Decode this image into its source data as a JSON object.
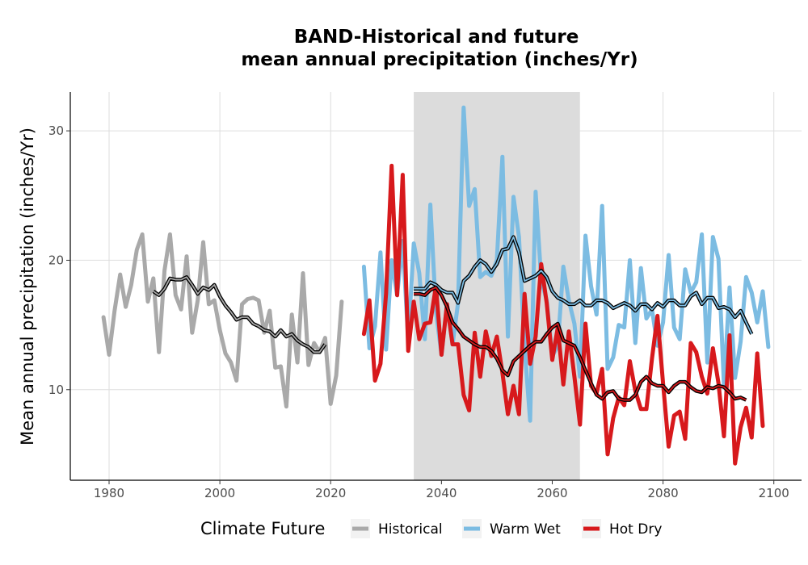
{
  "chart_data": {
    "type": "line",
    "title_lines": [
      "BAND-Historical and future",
      "mean annual precipitation (inches/Yr)"
    ],
    "xlabel": "",
    "ylabel": "Mean annual precipitation (inches/Yr)",
    "xlim": [
      1973,
      2105
    ],
    "ylim": [
      3,
      33
    ],
    "x_ticks": [
      1980,
      2000,
      2020,
      2040,
      2060,
      2080,
      2100
    ],
    "y_ticks": [
      10,
      20,
      30
    ],
    "grid": true,
    "shaded_period": [
      2035,
      2065
    ],
    "legend": {
      "title": "Climate Future",
      "position": "bottom"
    },
    "series": [
      {
        "name": "Historical",
        "color": "#a9a9a9",
        "x_start": 1979,
        "values": [
          15.6,
          12.7,
          16.1,
          18.9,
          16.4,
          18.1,
          20.8,
          22.0,
          16.8,
          18.6,
          12.9,
          19.2,
          22.0,
          17.3,
          16.2,
          20.3,
          14.4,
          16.9,
          21.4,
          16.6,
          16.9,
          14.6,
          12.8,
          12.1,
          10.7,
          16.6,
          17.0,
          17.1,
          16.9,
          14.4,
          16.1,
          11.7,
          11.8,
          8.7,
          15.8,
          12.1,
          19.0,
          11.9,
          13.6,
          12.9,
          14.0,
          8.9,
          11.1,
          16.8
        ]
      },
      {
        "name": "Historical rolling mean",
        "color": "#000000",
        "x_start": 1988,
        "values": [
          17.6,
          17.3,
          17.8,
          18.6,
          18.5,
          18.5,
          18.7,
          18.1,
          17.4,
          17.9,
          17.7,
          18.1,
          17.2,
          16.5,
          16.0,
          15.4,
          15.6,
          15.6,
          15.1,
          14.9,
          14.6,
          14.5,
          14.1,
          14.6,
          14.1,
          14.3,
          13.8,
          13.5,
          13.3,
          12.9,
          12.9,
          13.5
        ]
      },
      {
        "name": "Warm Wet",
        "color": "#7cbce2",
        "x_start": 2026,
        "values": [
          19.5,
          13.2,
          14.9,
          20.6,
          13.1,
          20.0,
          17.3,
          21.5,
          13.8,
          21.3,
          19.0,
          13.9,
          24.3,
          16.1,
          12.7,
          16.6,
          13.5,
          16.7,
          31.8,
          24.2,
          25.5,
          18.7,
          19.1,
          18.8,
          20.0,
          28.0,
          14.1,
          24.9,
          21.8,
          13.3,
          7.6,
          25.3,
          18.5,
          16.9,
          12.6,
          13.4,
          19.5,
          16.9,
          15.1,
          11.0,
          21.9,
          18.0,
          15.8,
          24.2,
          11.6,
          12.5,
          15.0,
          14.8,
          20.0,
          13.6,
          19.4,
          15.5,
          16.2,
          13.4,
          15.2,
          20.4,
          14.8,
          13.9,
          19.3,
          17.5,
          18.3,
          22.0,
          12.1,
          21.8,
          20.1,
          10.3,
          17.9,
          10.9,
          13.7,
          18.7,
          17.5,
          15.2,
          17.6,
          13.3
        ]
      },
      {
        "name": "Warm Wet rolling mean",
        "color": "#000000",
        "x_start": 2035,
        "values": [
          17.8,
          17.8,
          17.8,
          18.3,
          18.1,
          17.7,
          17.5,
          17.5,
          16.7,
          18.4,
          18.8,
          19.5,
          20.0,
          19.7,
          19.1,
          19.7,
          20.8,
          20.9,
          21.8,
          20.6,
          18.4,
          18.6,
          18.8,
          19.2,
          18.7,
          17.6,
          17.1,
          16.9,
          16.6,
          16.6,
          16.9,
          16.5,
          16.5,
          16.9,
          16.9,
          16.7,
          16.3,
          16.5,
          16.7,
          16.5,
          16.1,
          16.6,
          16.6,
          16.2,
          16.7,
          16.4,
          16.9,
          16.9,
          16.5,
          16.5,
          17.2,
          17.5,
          16.6,
          17.1,
          17.1,
          16.3,
          16.4,
          16.2,
          15.6,
          16.1,
          15.2,
          14.3
        ]
      },
      {
        "name": "Hot Dry",
        "color": "#d7191c",
        "x_start": 2026,
        "values": [
          14.3,
          16.9,
          10.7,
          12.0,
          17.4,
          27.3,
          17.3,
          26.6,
          13.0,
          16.8,
          13.9,
          15.1,
          15.2,
          18.0,
          12.7,
          16.6,
          13.5,
          13.5,
          9.6,
          8.4,
          14.4,
          11.0,
          14.5,
          12.6,
          14.1,
          11.3,
          8.1,
          10.3,
          8.1,
          17.4,
          12.0,
          14.1,
          19.7,
          16.7,
          12.3,
          14.8,
          10.4,
          14.5,
          11.0,
          7.3,
          15.1,
          10.3,
          9.7,
          11.6,
          5.0,
          7.8,
          9.4,
          8.8,
          12.2,
          9.9,
          8.5,
          8.5,
          12.4,
          15.7,
          10.5,
          5.6,
          8.0,
          8.3,
          6.2,
          13.6,
          12.9,
          11.0,
          9.7,
          13.2,
          10.5,
          6.4,
          14.2,
          4.3,
          7.1,
          8.6,
          6.3,
          12.8,
          7.2
        ]
      },
      {
        "name": "Hot Dry rolling mean",
        "color": "#000000",
        "x_start": 2035,
        "values": [
          17.4,
          17.4,
          17.3,
          17.7,
          17.9,
          17.3,
          16.4,
          15.2,
          14.7,
          14.1,
          13.8,
          13.5,
          13.3,
          13.3,
          13.0,
          12.4,
          11.5,
          11.1,
          12.2,
          12.6,
          13.0,
          13.4,
          13.7,
          13.7,
          14.3,
          14.8,
          15.1,
          13.8,
          13.6,
          13.4,
          12.5,
          11.5,
          10.5,
          9.6,
          9.3,
          9.8,
          9.9,
          9.3,
          9.2,
          9.2,
          9.6,
          10.6,
          11.0,
          10.5,
          10.3,
          10.3,
          9.8,
          10.3,
          10.6,
          10.6,
          10.2,
          9.9,
          9.8,
          10.2,
          10.1,
          10.3,
          10.2,
          9.8,
          9.3,
          9.4,
          9.2
        ]
      }
    ],
    "legend_entries": [
      {
        "label": "Historical",
        "color": "#a9a9a9"
      },
      {
        "label": "Warm Wet",
        "color": "#7cbce2"
      },
      {
        "label": "Hot Dry",
        "color": "#d7191c"
      }
    ]
  }
}
